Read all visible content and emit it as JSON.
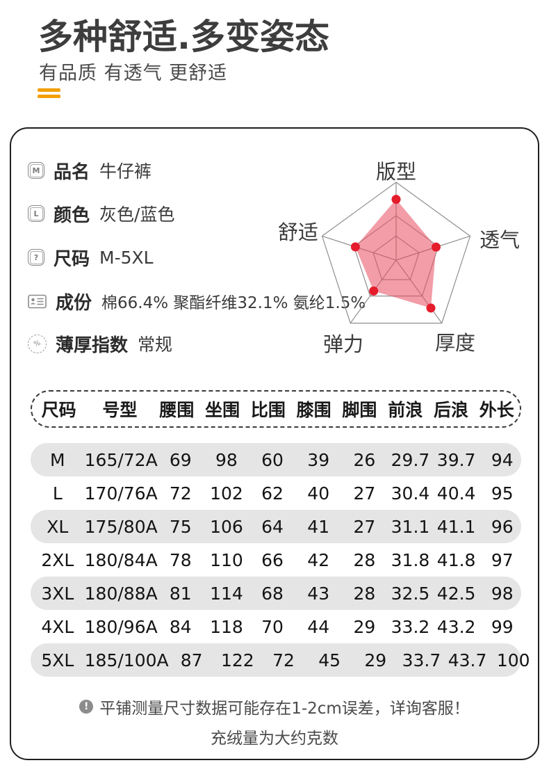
{
  "header": {
    "title": "多种舒适.多变姿态",
    "subtitle": "有品质 有透气 更舒适",
    "accent_color": "#f2a007"
  },
  "info": {
    "items": [
      {
        "icon": "m-badge-icon",
        "glyph": "M",
        "label": "品名",
        "value": "牛仔裤"
      },
      {
        "icon": "l-badge-icon",
        "glyph": "L",
        "label": "颜色",
        "value": "灰色/蓝色"
      },
      {
        "icon": "question-badge-icon",
        "glyph": "?",
        "label": "尺码",
        "value": "M-5XL"
      },
      {
        "icon": "id-card-icon",
        "glyph": "",
        "label": "成份",
        "value": "棉66.4% 聚酯纤维32.1% 氨纶1.5%"
      },
      {
        "icon": "percent-stamp-icon",
        "glyph": "%",
        "label": "薄厚指数",
        "value": "常规"
      }
    ]
  },
  "chart_data": {
    "type": "radar",
    "title": "",
    "categories": [
      "版型",
      "透气",
      "厚度",
      "弹力",
      "舒适"
    ],
    "values": [
      0.78,
      0.54,
      0.76,
      0.49,
      0.55
    ],
    "value_max": 1,
    "rings": [
      0.31,
      0.57,
      1.0
    ],
    "grid_color": "#8f8f8f",
    "fill_color": "#e74c5e",
    "fill_opacity": 0.55,
    "dot_color": "#e51c2c",
    "legend": "none"
  },
  "table": {
    "headers": [
      "尺码",
      "号型",
      "腰围",
      "坐围",
      "比围",
      "膝围",
      "脚围",
      "前浪",
      "后浪",
      "外长"
    ],
    "rows": [
      [
        "M",
        "165/72A",
        "69",
        "98",
        "60",
        "39",
        "26",
        "29.7",
        "39.7",
        "94"
      ],
      [
        "L",
        "170/76A",
        "72",
        "102",
        "62",
        "40",
        "27",
        "30.4",
        "40.4",
        "95"
      ],
      [
        "XL",
        "175/80A",
        "75",
        "106",
        "64",
        "41",
        "27",
        "31.1",
        "41.1",
        "96"
      ],
      [
        "2XL",
        "180/84A",
        "78",
        "110",
        "66",
        "42",
        "28",
        "31.8",
        "41.8",
        "97"
      ],
      [
        "3XL",
        "180/88A",
        "81",
        "114",
        "68",
        "43",
        "28",
        "32.5",
        "42.5",
        "98"
      ],
      [
        "4XL",
        "180/96A",
        "84",
        "118",
        "70",
        "44",
        "29",
        "33.2",
        "43.2",
        "99"
      ],
      [
        "5XL",
        "185/100A",
        "87",
        "122",
        "72",
        "45",
        "29",
        "33.7",
        "43.7",
        "100"
      ]
    ],
    "striped_row_color": "#e5e5e5"
  },
  "footer": {
    "alert_glyph": "!",
    "note1": "平铺测量尺寸数据可能存在1-2cm误差，详询客服！",
    "note2": "充绒量为大约克数"
  }
}
